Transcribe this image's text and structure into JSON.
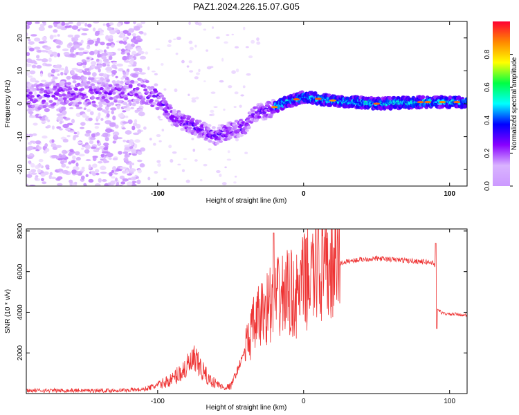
{
  "page": {
    "title": "PAZ1.2024.226.15.07.G05"
  },
  "chart_data": [
    {
      "type": "heatmap",
      "title": "PAZ1.2024.226.15.07.G05",
      "xlabel": "Height of straight line (km)",
      "ylabel": "Frequency (Hz)",
      "xlim": [
        -190,
        112
      ],
      "ylim": [
        -25,
        25
      ],
      "xticks": [
        -100,
        0,
        100
      ],
      "yticks": [
        -20,
        -10,
        0,
        10,
        20
      ],
      "colorbar": {
        "label": "Normalized spectral amplitude",
        "range": [
          0,
          1
        ],
        "ticks": [
          "0.0",
          "0.2",
          "0.4",
          "0.6",
          "0.8"
        ],
        "colors": [
          "#ffffff",
          "#d9b3ff",
          "#8800ff",
          "#0000ff",
          "#00ffff",
          "#00ff44",
          "#ffff00",
          "#ff8800",
          "#ff0033"
        ]
      },
      "ridge": {
        "description_points": [
          [
            -190,
            2
          ],
          [
            -160,
            3
          ],
          [
            -130,
            3
          ],
          [
            -110,
            4
          ],
          [
            -100,
            2
          ],
          [
            -90,
            -4
          ],
          [
            -80,
            -6
          ],
          [
            -70,
            -8
          ],
          [
            -60,
            -10
          ],
          [
            -50,
            -8
          ],
          [
            -40,
            -7
          ],
          [
            -35,
            -3
          ],
          [
            -25,
            -2
          ],
          [
            -15,
            0
          ],
          [
            0,
            2
          ],
          [
            20,
            1
          ],
          [
            50,
            0
          ],
          [
            80,
            0.5
          ],
          [
            100,
            0.5
          ],
          [
            112,
            0.5
          ]
        ]
      },
      "grid": false
    },
    {
      "type": "line",
      "xlabel": "Height of straight line (km)",
      "ylabel": "SNR (10 * v/v)",
      "xlim": [
        -190,
        112
      ],
      "ylim": [
        0,
        8100
      ],
      "xticks": [
        -100,
        0,
        100
      ],
      "yticks": [
        2000,
        4000,
        6000,
        8000
      ],
      "series": [
        {
          "color": "#ee3333",
          "x": [
            -190,
            -170,
            -150,
            -130,
            -110,
            -100,
            -90,
            -80,
            -75,
            -70,
            -65,
            -60,
            -55,
            -50,
            -45,
            -40,
            -35,
            -30,
            -25,
            -20,
            -15,
            -10,
            -5,
            0,
            5,
            10,
            15,
            20,
            25,
            30,
            40,
            50,
            60,
            70,
            80,
            88,
            90,
            91,
            95,
            100,
            105,
            112
          ],
          "y": [
            150,
            150,
            150,
            150,
            200,
            400,
            700,
            1300,
            1600,
            1200,
            700,
            500,
            300,
            350,
            1200,
            2200,
            3200,
            3800,
            4300,
            4500,
            4800,
            5000,
            4700,
            5500,
            5800,
            6000,
            5900,
            6200,
            6400,
            6500,
            6600,
            6650,
            6600,
            6550,
            6500,
            6450,
            6300,
            4200,
            3950,
            3900,
            3900,
            3850
          ]
        }
      ],
      "grid": false
    }
  ]
}
